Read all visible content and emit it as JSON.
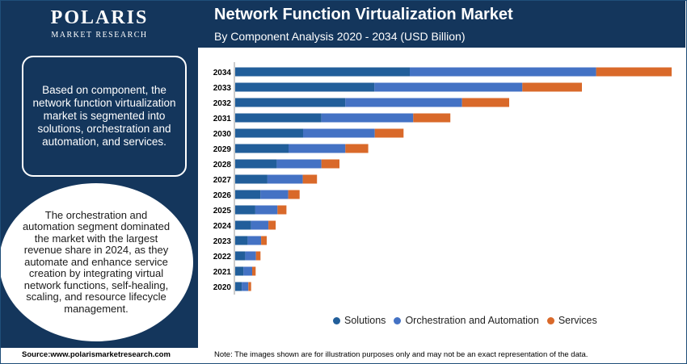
{
  "logo": {
    "name": "POLARIS",
    "sub": "MARKET RESEARCH"
  },
  "left_panel": {
    "box_text": "Based on component, the network function virtualization market is segmented into solutions, orchestration and automation, and services.",
    "circle_text": "The orchestration and automation segment dominated the market with the largest revenue share in 2024, as they automate and enhance service creation by integrating virtual network functions, self-healing, scaling, and resource lifecycle management."
  },
  "footer": {
    "source": "Source:www.polarismarketresearch.com",
    "note": "Note: The images shown are for illustration purposes only and may not be an exact representation of the data."
  },
  "colors": {
    "solutions": "#215e9a",
    "orchestration": "#4472c4",
    "services": "#d9692a",
    "navy": "#14365c"
  },
  "chart_data": {
    "type": "bar",
    "orientation": "horizontal",
    "stacked": true,
    "title": "Network Function Virtualization Market",
    "subtitle": "By Component Analysis 2020 - 2034 (USD Billion)",
    "categories": [
      "2034",
      "2033",
      "2032",
      "2031",
      "2030",
      "2029",
      "2028",
      "2027",
      "2026",
      "2025",
      "2024",
      "2023",
      "2022",
      "2021",
      "2020"
    ],
    "series": [
      {
        "name": "Solutions",
        "values": [
          50.4,
          40.2,
          31.8,
          24.9,
          19.6,
          15.4,
          12.0,
          9.3,
          7.3,
          5.8,
          4.6,
          3.6,
          2.9,
          2.4,
          1.9
        ]
      },
      {
        "name": "Orchestration and Automation",
        "values": [
          53.8,
          42.7,
          33.7,
          26.5,
          20.7,
          16.4,
          12.9,
          10.2,
          8.0,
          6.4,
          5.0,
          3.9,
          3.1,
          2.5,
          1.9
        ]
      },
      {
        "name": "Services",
        "values": [
          21.8,
          17.2,
          13.6,
          10.7,
          8.3,
          6.6,
          5.2,
          4.1,
          3.3,
          2.6,
          2.1,
          1.6,
          1.3,
          1.0,
          0.8
        ]
      }
    ],
    "xlim": [
      0,
      126
    ],
    "grid": false,
    "legend_position": "bottom"
  }
}
